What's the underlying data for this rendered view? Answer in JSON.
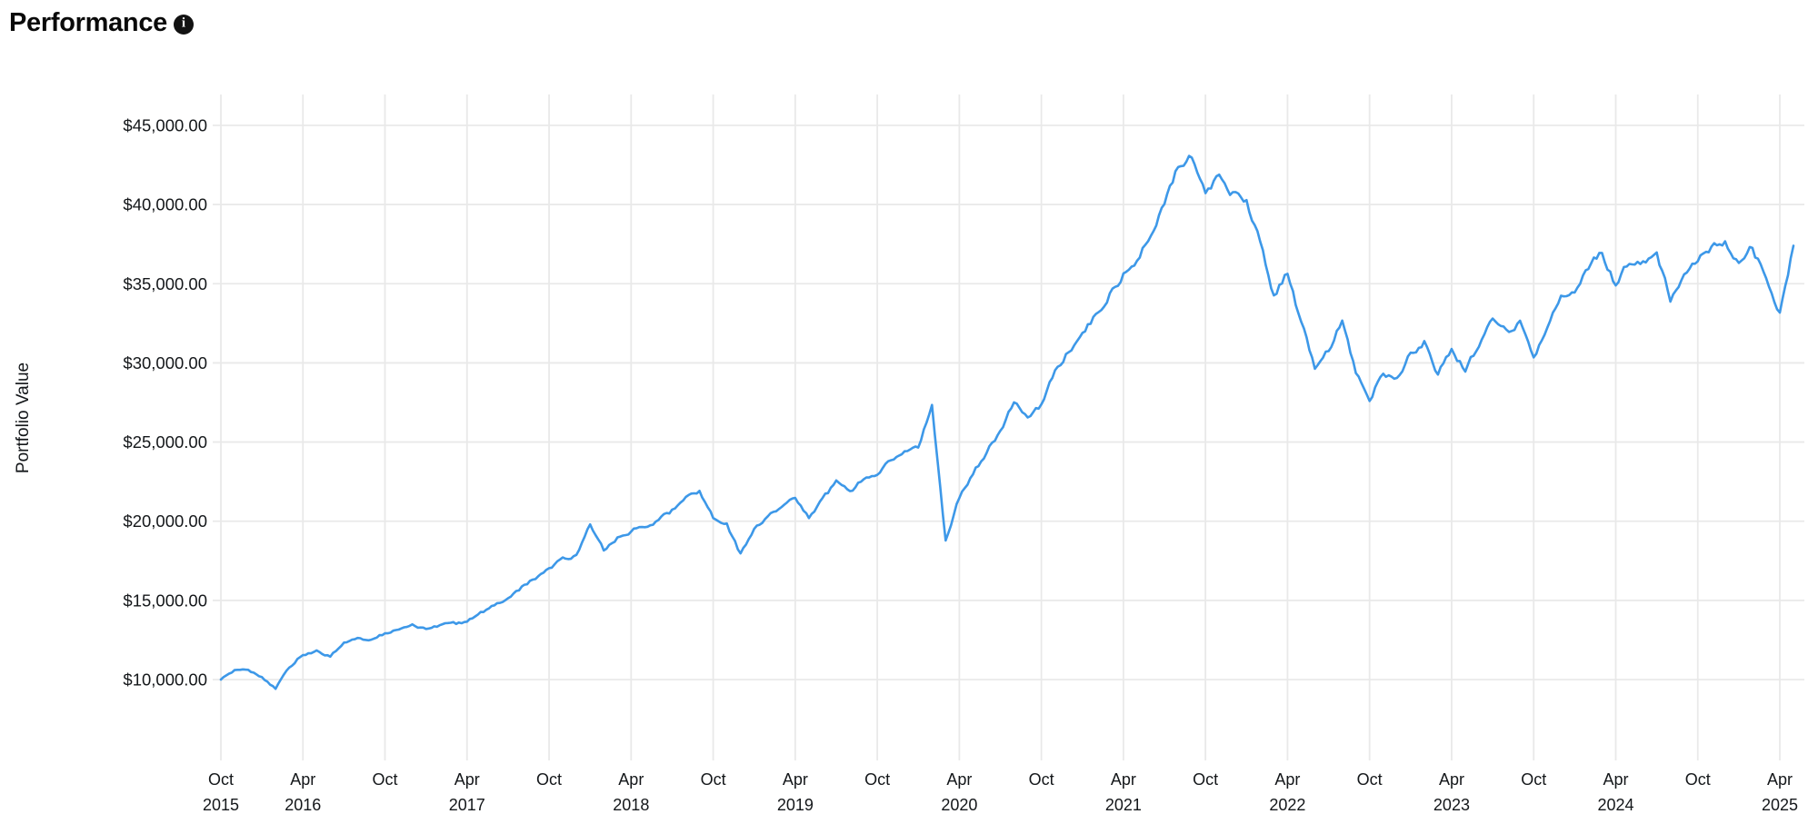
{
  "header": {
    "title": "Performance",
    "info_icon": "i"
  },
  "chart_data": {
    "type": "line",
    "title": "Performance",
    "xlabel": "",
    "ylabel": "Portfolio Value",
    "legend": "none",
    "grid": true,
    "line_color": "#3d98e8",
    "grid_color": "#e9e9e9",
    "label_color": "#14171a",
    "y_axis_format": "currency",
    "ylim": [
      5200,
      47000
    ],
    "y_ticks": [
      {
        "value": 45000,
        "label": "$45,000.00"
      },
      {
        "value": 40000,
        "label": "$40,000.00"
      },
      {
        "value": 35000,
        "label": "$35,000.00"
      },
      {
        "value": 30000,
        "label": "$30,000.00"
      },
      {
        "value": 25000,
        "label": "$25,000.00"
      },
      {
        "value": 20000,
        "label": "$20,000.00"
      },
      {
        "value": 15000,
        "label": "$15,000.00"
      },
      {
        "value": 10000,
        "label": "$10,000.00"
      }
    ],
    "x_ticks": [
      {
        "month": 0,
        "line1": "Oct",
        "line2": "2015"
      },
      {
        "month": 6,
        "line1": "Apr",
        "line2": "2016"
      },
      {
        "month": 12,
        "line1": "Oct",
        "line2": ""
      },
      {
        "month": 18,
        "line1": "Apr",
        "line2": "2017"
      },
      {
        "month": 24,
        "line1": "Oct",
        "line2": ""
      },
      {
        "month": 30,
        "line1": "Apr",
        "line2": "2018"
      },
      {
        "month": 36,
        "line1": "Oct",
        "line2": ""
      },
      {
        "month": 42,
        "line1": "Apr",
        "line2": "2019"
      },
      {
        "month": 48,
        "line1": "Oct",
        "line2": ""
      },
      {
        "month": 54,
        "line1": "Apr",
        "line2": "2020"
      },
      {
        "month": 60,
        "line1": "Oct",
        "line2": ""
      },
      {
        "month": 66,
        "line1": "Apr",
        "line2": "2021"
      },
      {
        "month": 72,
        "line1": "Oct",
        "line2": ""
      },
      {
        "month": 78,
        "line1": "Apr",
        "line2": "2022"
      },
      {
        "month": 84,
        "line1": "Oct",
        "line2": ""
      },
      {
        "month": 90,
        "line1": "Apr",
        "line2": "2023"
      },
      {
        "month": 96,
        "line1": "Oct",
        "line2": ""
      },
      {
        "month": 102,
        "line1": "Apr",
        "line2": "2024"
      },
      {
        "month": 108,
        "line1": "Oct",
        "line2": ""
      },
      {
        "month": 114,
        "line1": "Apr",
        "line2": "2025"
      }
    ],
    "series": [
      {
        "name": "Portfolio Value",
        "start": "2015-10",
        "frequency": "monthly",
        "values": [
          10000,
          10600,
          10550,
          10150,
          9450,
          10800,
          11600,
          11800,
          11450,
          12350,
          12650,
          12500,
          12900,
          13200,
          13450,
          13250,
          13400,
          13500,
          13600,
          14200,
          14700,
          15100,
          15800,
          16400,
          17100,
          17600,
          17900,
          19900,
          18200,
          18900,
          19400,
          19700,
          20100,
          20700,
          21400,
          21900,
          20300,
          19800,
          17900,
          19500,
          20400,
          20800,
          21500,
          20300,
          21300,
          22500,
          21900,
          22600,
          23000,
          23900,
          24300,
          24700,
          27200,
          18700,
          21500,
          23000,
          24400,
          25600,
          27500,
          26600,
          27300,
          29500,
          30800,
          31800,
          33000,
          34300,
          35600,
          36600,
          38200,
          40300,
          42400,
          43200,
          40900,
          41800,
          40700,
          40300,
          37500,
          34200,
          35800,
          32500,
          29800,
          30800,
          32800,
          29500,
          27800,
          29400,
          29000,
          30600,
          31300,
          29300,
          30900,
          29500,
          31200,
          32800,
          31900,
          32500,
          30300,
          32300,
          34000,
          34400,
          36000,
          37000,
          34800,
          36400,
          36400,
          36900,
          34100,
          35400,
          36500,
          37300,
          37600,
          36400,
          37300,
          35300,
          33200,
          37400
        ]
      }
    ]
  }
}
